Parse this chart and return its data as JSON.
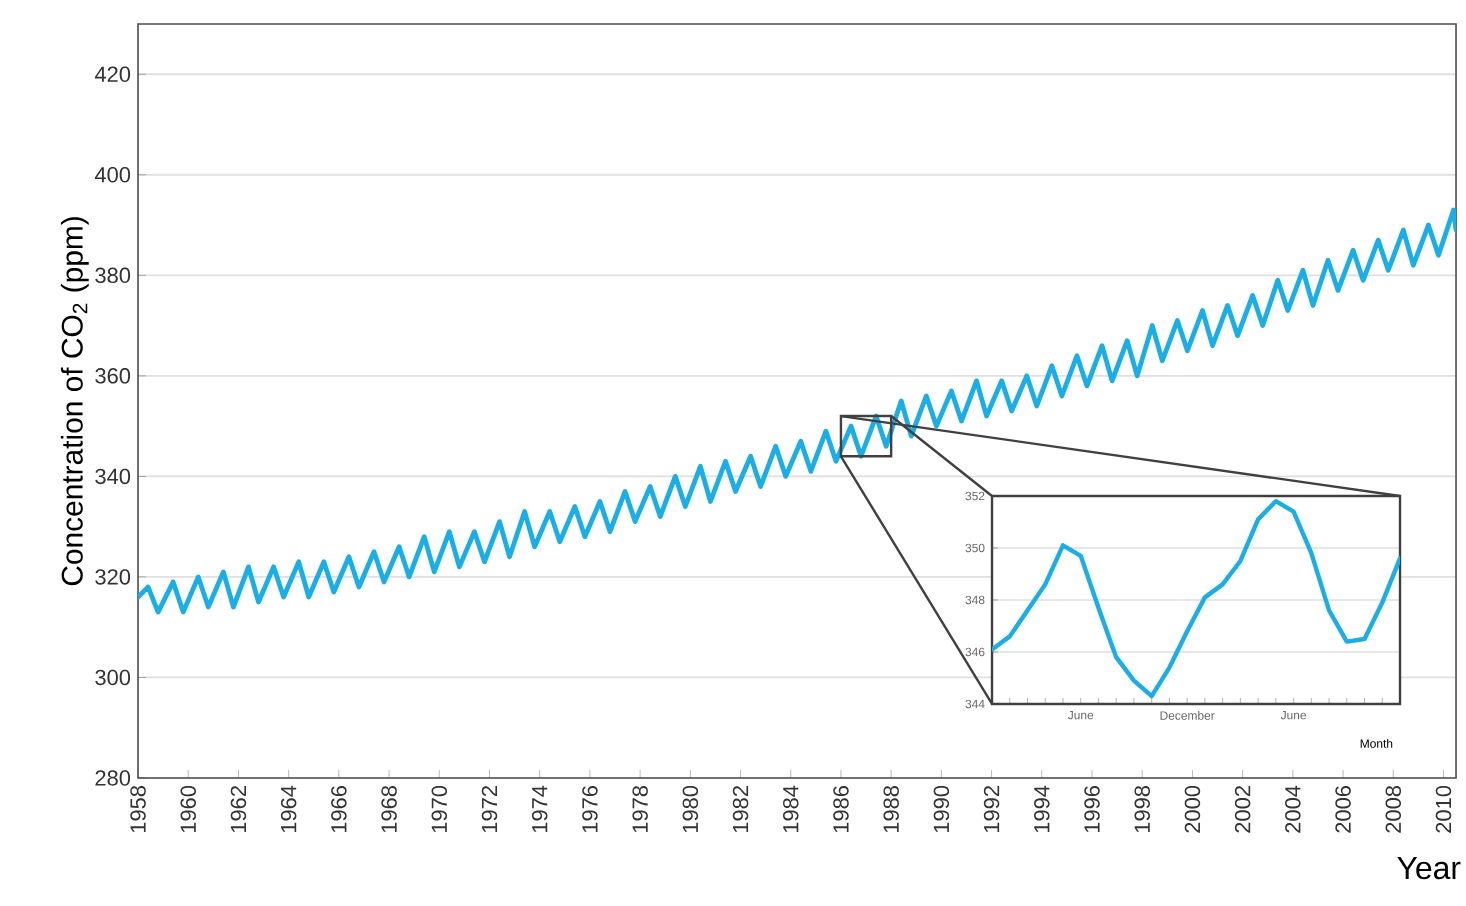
{
  "chart_data": [
    {
      "type": "line",
      "xlabel": "Year",
      "ylabel": "Concentration of CO$_{2}$ (ppm)",
      "grid": "y",
      "line_style": "solid",
      "xlim": [
        1958,
        2010.5
      ],
      "ylim": [
        280,
        430
      ],
      "xticks": [
        1958,
        1960,
        1962,
        1964,
        1966,
        1968,
        1970,
        1972,
        1974,
        1976,
        1978,
        1980,
        1982,
        1984,
        1986,
        1988,
        1990,
        1992,
        1994,
        1996,
        1998,
        2000,
        2002,
        2004,
        2006,
        2008,
        2010
      ],
      "yticks": [
        280,
        300,
        320,
        340,
        360,
        380,
        400,
        420
      ],
      "x": [
        1958,
        1958.4,
        1958.8,
        1959.4,
        1959.8,
        1960.4,
        1960.8,
        1961.4,
        1961.8,
        1962.4,
        1962.8,
        1963.4,
        1963.8,
        1964.4,
        1964.8,
        1965.4,
        1965.8,
        1966.4,
        1966.8,
        1967.4,
        1967.8,
        1968.4,
        1968.8,
        1969.4,
        1969.8,
        1970.4,
        1970.8,
        1971.4,
        1971.8,
        1972.4,
        1972.8,
        1973.4,
        1973.8,
        1974.4,
        1974.8,
        1975.4,
        1975.8,
        1976.4,
        1976.8,
        1977.4,
        1977.8,
        1978.4,
        1978.8,
        1979.4,
        1979.8,
        1980.4,
        1980.8,
        1981.4,
        1981.8,
        1982.4,
        1982.8,
        1983.4,
        1983.8,
        1984.4,
        1984.8,
        1985.4,
        1985.8,
        1986.4,
        1986.8,
        1987.4,
        1987.8,
        1988.4,
        1988.8,
        1989.4,
        1989.8,
        1990.4,
        1990.8,
        1991.4,
        1991.8,
        1992.4,
        1992.8,
        1993.4,
        1993.8,
        1994.4,
        1994.8,
        1995.4,
        1995.8,
        1996.4,
        1996.8,
        1997.4,
        1997.8,
        1998.4,
        1998.8,
        1999.4,
        1999.8,
        2000.4,
        2000.8,
        2001.4,
        2001.8,
        2002.4,
        2002.8,
        2003.4,
        2003.8,
        2004.4,
        2004.8,
        2005.4,
        2005.8,
        2006.4,
        2006.8,
        2007.4,
        2007.8,
        2008.4,
        2008.8,
        2009.4,
        2009.8,
        2010.4,
        2010.5
      ],
      "series": [
        {
          "color": "#1aaee8",
          "values": [
            316,
            318,
            313,
            319,
            313,
            320,
            314,
            321,
            314,
            322,
            315,
            322,
            316,
            323,
            316,
            323,
            317,
            324,
            318,
            325,
            319,
            326,
            320,
            328,
            321,
            329,
            322,
            329,
            323,
            331,
            324,
            333,
            326,
            333,
            327,
            334,
            328,
            335,
            329,
            337,
            331,
            338,
            332,
            340,
            334,
            342,
            335,
            343,
            337,
            344,
            338,
            346,
            340,
            347,
            341,
            349,
            343,
            350,
            344,
            352,
            346,
            355,
            348,
            356,
            350,
            357,
            351,
            359,
            352,
            359,
            353,
            360,
            354,
            362,
            356,
            364,
            358,
            366,
            359,
            367,
            360,
            370,
            363,
            371,
            365,
            373,
            366,
            374,
            368,
            376,
            370,
            379,
            373,
            381,
            374,
            383,
            377,
            385,
            379,
            387,
            381,
            389,
            382,
            390,
            384,
            393,
            389
          ]
        }
      ]
    },
    {
      "type": "line",
      "xlabel": "Month",
      "grid": "y",
      "line_style": "solid",
      "ylim": [
        344,
        352
      ],
      "yticks": [
        344,
        346,
        348,
        350,
        352
      ],
      "categories": [
        null,
        null,
        null,
        null,
        null,
        "June",
        null,
        null,
        null,
        null,
        null,
        "December",
        null,
        null,
        null,
        null,
        null,
        "June",
        null,
        null,
        null,
        null,
        null,
        null
      ],
      "series": [
        {
          "color": "#1aaee8",
          "values": [
            346.1,
            346.6,
            347.6,
            348.6,
            350.1,
            349.7,
            347.7,
            345.8,
            344.9,
            344.3,
            345.4,
            346.8,
            348.1,
            348.6,
            349.5,
            351.1,
            351.8,
            351.4,
            349.8,
            347.6,
            346.4,
            346.5,
            347.9,
            349.6
          ]
        }
      ]
    }
  ]
}
